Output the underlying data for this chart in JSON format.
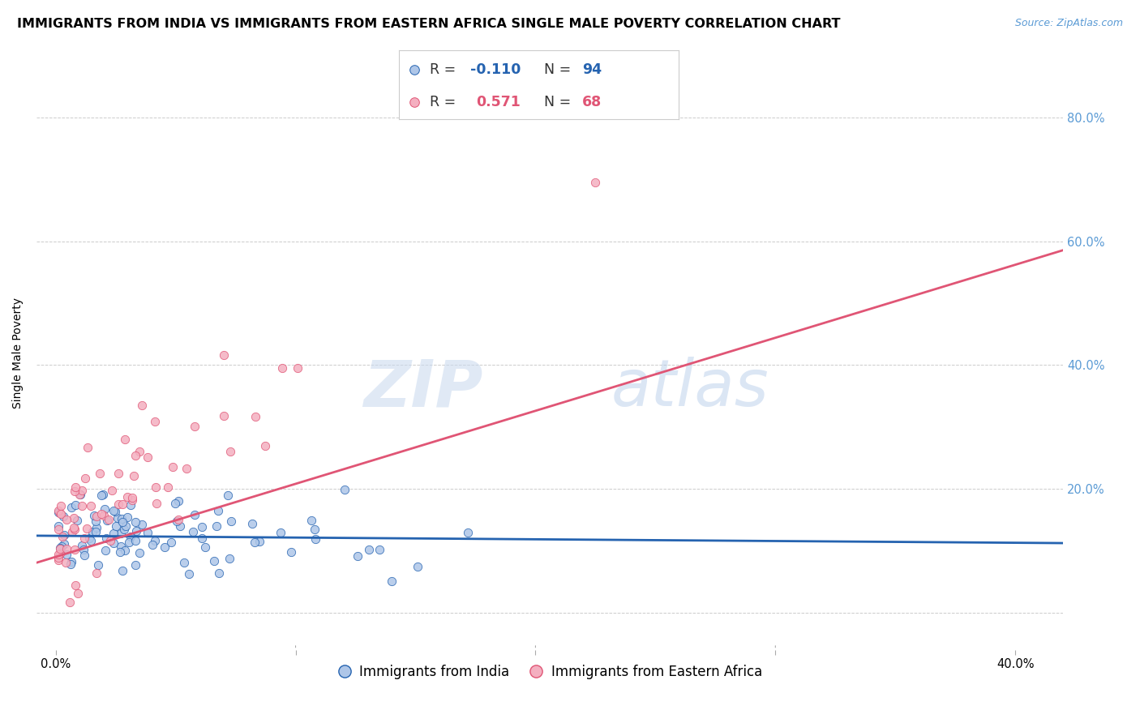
{
  "title": "IMMIGRANTS FROM INDIA VS IMMIGRANTS FROM EASTERN AFRICA SINGLE MALE POVERTY CORRELATION CHART",
  "source": "Source: ZipAtlas.com",
  "ylabel": "Single Male Poverty",
  "yticks": [
    0.0,
    0.2,
    0.4,
    0.6,
    0.8
  ],
  "ytick_labels": [
    "",
    "20.0%",
    "40.0%",
    "60.0%",
    "80.0%"
  ],
  "xticks": [
    0.0,
    0.1,
    0.2,
    0.3,
    0.4
  ],
  "xtick_labels": [
    "0.0%",
    "",
    "",
    "",
    "40.0%"
  ],
  "xlim": [
    -0.008,
    0.42
  ],
  "ylim": [
    -0.06,
    0.9
  ],
  "india_R": -0.11,
  "india_N": 94,
  "africa_R": 0.571,
  "africa_N": 68,
  "india_color": "#aec6e8",
  "africa_color": "#f4afc0",
  "india_line_color": "#2563b0",
  "africa_line_color": "#e05575",
  "watermark_zip": "ZIP",
  "watermark_atlas": "atlas",
  "background_color": "#ffffff",
  "grid_color": "#cccccc",
  "title_fontsize": 11.5,
  "source_fontsize": 9,
  "axis_label_fontsize": 10,
  "tick_fontsize": 10.5,
  "right_tick_color": "#5b9bd5",
  "india_legend_label": "Immigrants from India",
  "africa_legend_label": "Immigrants from Eastern Africa",
  "india_line_intercept": 0.124,
  "india_line_slope": -0.028,
  "africa_line_intercept": 0.09,
  "africa_line_slope": 1.18
}
